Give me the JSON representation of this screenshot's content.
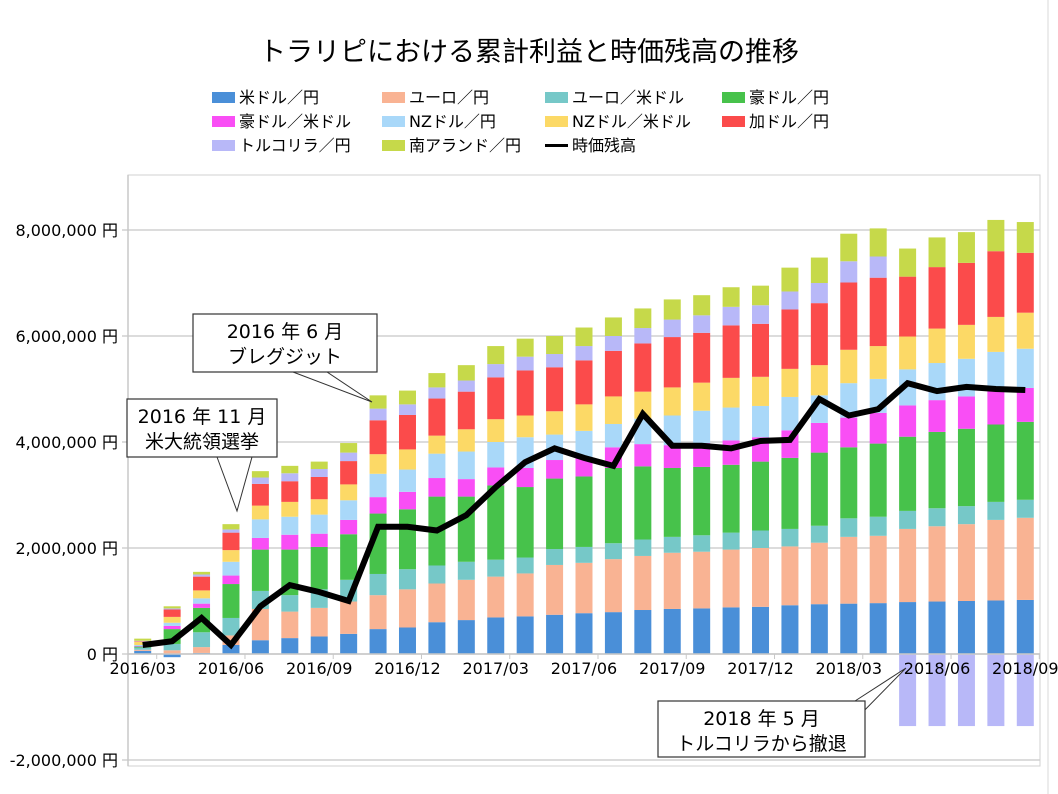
{
  "chart_data": {
    "type": "bar",
    "subtype": "stacked-bar-with-line",
    "title": "トラリピにおける累計利益と時価残高の推移",
    "xlabel": "",
    "ylabel": "",
    "ylim": [
      -2000000,
      8000000
    ],
    "yticks": [
      -2000000,
      0,
      2000000,
      4000000,
      6000000,
      8000000
    ],
    "ytick_labels": [
      "-2,000,000 円",
      "0 円",
      "2,000,000 円",
      "4,000,000 円",
      "6,000,000 円",
      "8,000,000 円"
    ],
    "grid": true,
    "legend_position": "top",
    "categories": [
      "2016/03",
      "2016/04",
      "2016/05",
      "2016/06",
      "2016/07",
      "2016/08",
      "2016/09",
      "2016/10",
      "2016/11",
      "2016/12",
      "2017/01",
      "2017/02",
      "2017/03",
      "2017/04",
      "2017/05",
      "2017/06",
      "2017/07",
      "2017/08",
      "2017/09",
      "2017/10",
      "2017/11",
      "2017/12",
      "2018/01",
      "2018/02",
      "2018/03",
      "2018/04",
      "2018/05",
      "2018/06",
      "2018/07",
      "2018/08",
      "2018/09"
    ],
    "xtick_labels": [
      "2016/03",
      "2016/06",
      "2016/09",
      "2016/12",
      "2017/03",
      "2017/06",
      "2017/09",
      "2017/12",
      "2018/03",
      "2018/06",
      "2018/09"
    ],
    "series": [
      {
        "name": "米ドル／円",
        "color": "#4a8fd8",
        "values": [
          60000,
          -60000,
          20000,
          170000,
          260000,
          300000,
          330000,
          380000,
          470000,
          500000,
          600000,
          640000,
          690000,
          710000,
          740000,
          770000,
          790000,
          830000,
          850000,
          860000,
          880000,
          890000,
          920000,
          940000,
          950000,
          960000,
          980000,
          990000,
          1000000,
          1010000,
          1020000
        ]
      },
      {
        "name": "ユーロ／円",
        "color": "#f9b393",
        "values": [
          20000,
          70000,
          110000,
          180000,
          590000,
          500000,
          540000,
          610000,
          640000,
          720000,
          730000,
          760000,
          770000,
          810000,
          940000,
          950000,
          1000000,
          1020000,
          1060000,
          1070000,
          1090000,
          1110000,
          1110000,
          1160000,
          1260000,
          1270000,
          1380000,
          1420000,
          1450000,
          1520000,
          1550000
        ]
      },
      {
        "name": "ユーロ／米ドル",
        "color": "#76c8c8",
        "values": [
          40000,
          120000,
          280000,
          330000,
          340000,
          310000,
          350000,
          410000,
          400000,
          380000,
          340000,
          340000,
          320000,
          300000,
          300000,
          300000,
          300000,
          310000,
          300000,
          310000,
          320000,
          330000,
          330000,
          320000,
          350000,
          360000,
          340000,
          340000,
          340000,
          340000,
          340000
        ]
      },
      {
        "name": "豪ドル／円",
        "color": "#47c24b",
        "values": [
          20000,
          280000,
          460000,
          640000,
          780000,
          860000,
          800000,
          860000,
          1140000,
          1130000,
          1300000,
          1230000,
          1400000,
          1330000,
          1330000,
          1330000,
          1420000,
          1380000,
          1300000,
          1290000,
          1280000,
          1300000,
          1340000,
          1380000,
          1340000,
          1380000,
          1400000,
          1440000,
          1460000,
          1460000,
          1470000
        ]
      },
      {
        "name": "豪ドル／米ドル",
        "color": "#f94ef5",
        "values": [
          10000,
          60000,
          80000,
          160000,
          220000,
          280000,
          250000,
          270000,
          310000,
          330000,
          350000,
          330000,
          340000,
          360000,
          350000,
          360000,
          390000,
          420000,
          430000,
          450000,
          460000,
          460000,
          520000,
          560000,
          560000,
          580000,
          590000,
          600000,
          610000,
          640000,
          640000
        ]
      },
      {
        "name": "NZドル／円",
        "color": "#a9d8f9",
        "values": [
          20000,
          60000,
          100000,
          260000,
          350000,
          340000,
          360000,
          370000,
          440000,
          420000,
          460000,
          520000,
          480000,
          580000,
          480000,
          500000,
          440000,
          480000,
          560000,
          610000,
          620000,
          590000,
          630000,
          520000,
          650000,
          640000,
          680000,
          700000,
          710000,
          730000,
          740000
        ]
      },
      {
        "name": "NZドル／米ドル",
        "color": "#fcd966",
        "values": [
          60000,
          110000,
          150000,
          220000,
          260000,
          280000,
          290000,
          300000,
          370000,
          380000,
          340000,
          420000,
          430000,
          410000,
          440000,
          500000,
          520000,
          510000,
          530000,
          530000,
          560000,
          550000,
          530000,
          570000,
          630000,
          620000,
          620000,
          650000,
          640000,
          660000,
          680000
        ]
      },
      {
        "name": "加ドル／円",
        "color": "#fb4b4b",
        "values": [
          10000,
          140000,
          260000,
          330000,
          410000,
          390000,
          420000,
          440000,
          640000,
          650000,
          700000,
          710000,
          790000,
          850000,
          830000,
          830000,
          860000,
          910000,
          950000,
          940000,
          990000,
          1000000,
          1120000,
          1170000,
          1270000,
          1290000,
          1130000,
          1160000,
          1170000,
          1240000,
          1130000
        ]
      },
      {
        "name": "トルコリラ／円",
        "color": "#b8b8f8",
        "values": [
          10000,
          20000,
          40000,
          60000,
          120000,
          150000,
          150000,
          160000,
          220000,
          200000,
          210000,
          210000,
          250000,
          260000,
          250000,
          270000,
          280000,
          290000,
          330000,
          330000,
          350000,
          350000,
          340000,
          380000,
          400000,
          400000,
          -1360000,
          -1360000,
          -1360000,
          -1360000,
          -1360000
        ]
      },
      {
        "name": "南アランド／円",
        "color": "#c6d94a",
        "values": [
          40000,
          40000,
          50000,
          100000,
          120000,
          140000,
          140000,
          180000,
          250000,
          260000,
          270000,
          290000,
          340000,
          340000,
          340000,
          350000,
          350000,
          370000,
          380000,
          380000,
          370000,
          370000,
          450000,
          480000,
          520000,
          530000,
          530000,
          560000,
          580000,
          590000,
          580000
        ]
      }
    ],
    "line": {
      "name": "時価残高",
      "color": "#000000",
      "values": [
        170000,
        240000,
        680000,
        170000,
        900000,
        1300000,
        1170000,
        1000000,
        2400000,
        2400000,
        2330000,
        2620000,
        3150000,
        3620000,
        3880000,
        3700000,
        3550000,
        4530000,
        3930000,
        3930000,
        3880000,
        4020000,
        4040000,
        4810000,
        4500000,
        4620000,
        5110000,
        4960000,
        5040000,
        5000000,
        4980000
      ]
    },
    "annotations": [
      {
        "line1": "2016 年 6 月",
        "line2": "ブレグジット",
        "target": "2016/06"
      },
      {
        "line1": "2016 年 11 月",
        "line2": "米大統領選挙",
        "target": "2016/11"
      },
      {
        "line1": "2018 年 5 月",
        "line2": "トルコリラから撤退",
        "target": "2018/05"
      }
    ]
  }
}
